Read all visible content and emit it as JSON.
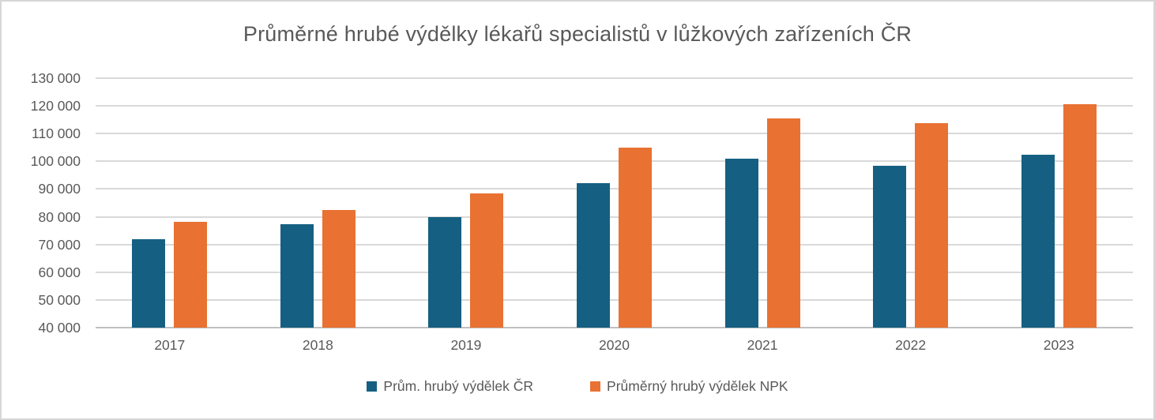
{
  "chart_data": {
    "type": "bar",
    "title": "Průměrné hrubé výdělky lékařů specialistů v lůžkových zařízeních ČR",
    "categories": [
      "2017",
      "2018",
      "2019",
      "2020",
      "2021",
      "2022",
      "2023"
    ],
    "series": [
      {
        "name": "Prům. hrubý výdělek ČR",
        "color": "#156082",
        "values": [
          72000,
          77400,
          79900,
          92200,
          100900,
          98300,
          102300
        ]
      },
      {
        "name": "Průměrný hrubý výdělek NPK",
        "color": "#E97132",
        "values": [
          78200,
          82400,
          88500,
          104800,
          115600,
          113900,
          120600
        ]
      }
    ],
    "ylim": [
      40000,
      130000
    ],
    "ytick_step": 10000,
    "yticks": [
      "130 000",
      "120 000",
      "110 000",
      "100 000",
      "90 000",
      "80 000",
      "70 000",
      "60 000",
      "50 000",
      "40 000"
    ],
    "xlabel": "",
    "ylabel": "",
    "grid": true,
    "legend_position": "bottom",
    "colors": {
      "gridline": "#d9d9d9",
      "axis_line": "#bfbfbf",
      "text": "#595959",
      "background": "#ffffff",
      "border": "#d6d6d6"
    }
  }
}
